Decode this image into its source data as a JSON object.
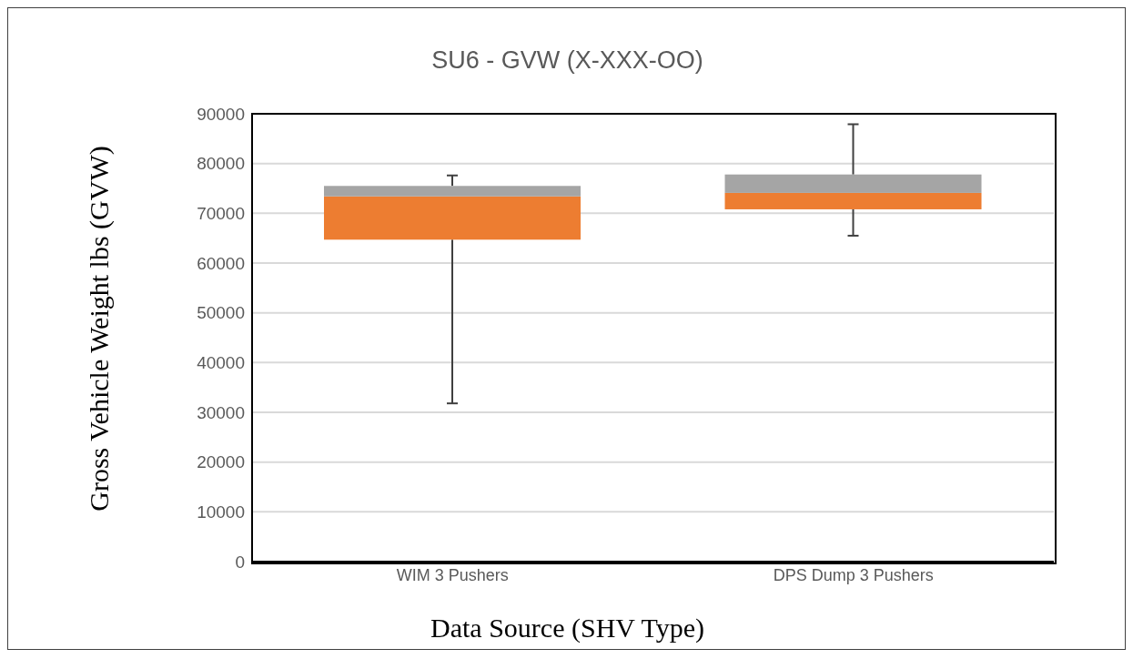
{
  "chart_data": {
    "type": "box",
    "title": "SU6 - GVW (X-XXX-OO)",
    "xlabel": "Data Source (SHV Type)",
    "ylabel": "Gross Vehicle Weight lbs (GVW)",
    "categories": [
      "WIM 3 Pushers",
      "DPS Dump 3 Pushers"
    ],
    "series": [
      {
        "color": "#ed7d31",
        "boxes": [
          {
            "low": 31800,
            "q1": 64700,
            "median": 73400,
            "q3": 75500,
            "high": 77600
          },
          {
            "low": 65500,
            "q1": 70800,
            "median": 74100,
            "q3": 77800,
            "high": 87900
          }
        ]
      }
    ],
    "ylim": [
      0,
      90000
    ],
    "yticks": [
      0,
      10000,
      20000,
      30000,
      40000,
      50000,
      60000,
      70000,
      80000,
      90000
    ],
    "grid": "y",
    "legend": false
  }
}
